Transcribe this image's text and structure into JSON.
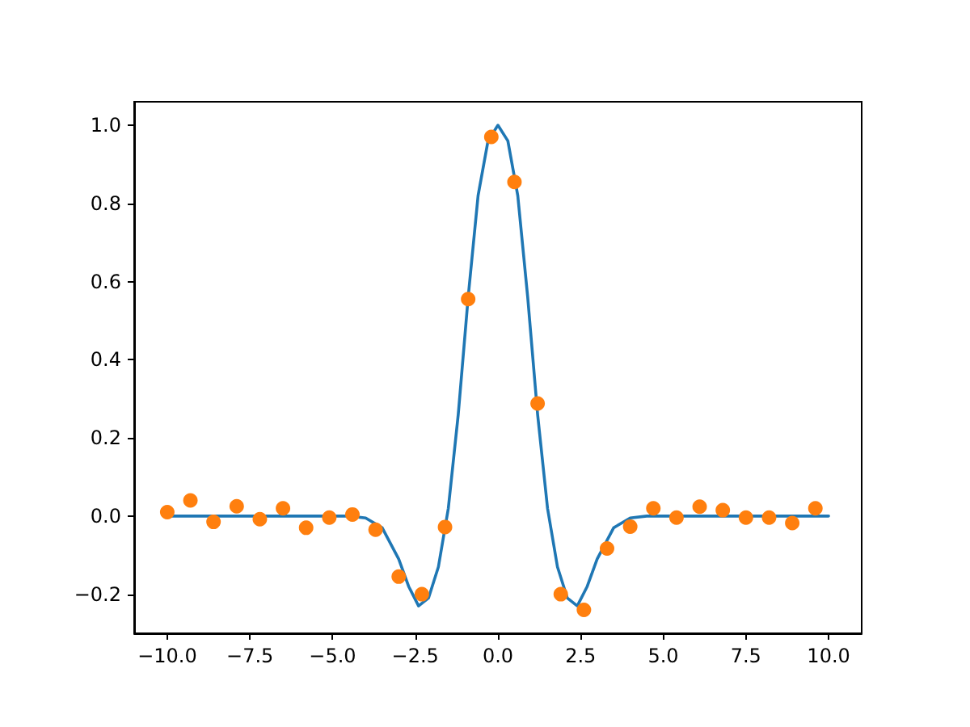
{
  "chart_data": {
    "type": "line",
    "xlim": [
      -11,
      11
    ],
    "ylim": [
      -0.3,
      1.06
    ],
    "xticks": [
      {
        "value": -10,
        "label": "−10.0"
      },
      {
        "value": -7.5,
        "label": "−7.5"
      },
      {
        "value": -5,
        "label": "−5.0"
      },
      {
        "value": -2.5,
        "label": "−2.5"
      },
      {
        "value": 0,
        "label": "0.0"
      },
      {
        "value": 2.5,
        "label": "2.5"
      },
      {
        "value": 5,
        "label": "5.0"
      },
      {
        "value": 7.5,
        "label": "7.5"
      },
      {
        "value": 10,
        "label": "10.0"
      }
    ],
    "yticks": [
      {
        "value": -0.2,
        "label": "−0.2"
      },
      {
        "value": 0,
        "label": "0.0"
      },
      0.2,
      0.4,
      0.6,
      0.8,
      {
        "value": 1,
        "label": "1.0"
      }
    ],
    "grid": false,
    "series": [
      {
        "color": "#1f77b4",
        "marker": "none",
        "line_style": "solid",
        "x": [
          -10,
          -8,
          -6,
          -5,
          -4.5,
          -4,
          -3.5,
          -3,
          -2.7,
          -2.4,
          -2.1,
          -1.8,
          -1.5,
          -1.2,
          -0.9,
          -0.6,
          -0.3,
          0,
          0.3,
          0.6,
          0.9,
          1.2,
          1.5,
          1.8,
          2.1,
          2.4,
          2.7,
          3,
          3.5,
          4,
          4.5,
          5,
          6,
          8,
          10
        ],
        "values": [
          0,
          0,
          0,
          0,
          0,
          -0.005,
          -0.03,
          -0.11,
          -0.18,
          -0.23,
          -0.21,
          -0.13,
          0.02,
          0.26,
          0.56,
          0.82,
          0.96,
          1.0,
          0.96,
          0.82,
          0.56,
          0.26,
          0.02,
          -0.13,
          -0.21,
          -0.23,
          -0.18,
          -0.11,
          -0.03,
          -0.005,
          0,
          0,
          0,
          0,
          0
        ]
      },
      {
        "type": "scatter",
        "color": "#ff7f0e",
        "marker": "circle",
        "x": [
          -10,
          -9.3,
          -8.6,
          -7.9,
          -7.2,
          -6.5,
          -5.8,
          -5.1,
          -4.4,
          -3.7,
          -3.0,
          -2.3,
          -1.6,
          -0.9,
          -0.2,
          0.5,
          1.2,
          1.9,
          2.6,
          3.3,
          4.0,
          4.7,
          5.4,
          6.1,
          6.8,
          7.5,
          8.2,
          8.9,
          9.6
        ],
        "values": [
          0.01,
          0.04,
          -0.015,
          0.025,
          -0.008,
          0.02,
          -0.03,
          -0.004,
          0.004,
          -0.035,
          -0.155,
          -0.2,
          -0.028,
          0.555,
          0.97,
          0.855,
          0.288,
          -0.2,
          -0.24,
          -0.083,
          -0.027,
          0.02,
          -0.004,
          0.024,
          0.015,
          -0.004,
          -0.004,
          -0.018,
          0.02
        ]
      }
    ]
  }
}
